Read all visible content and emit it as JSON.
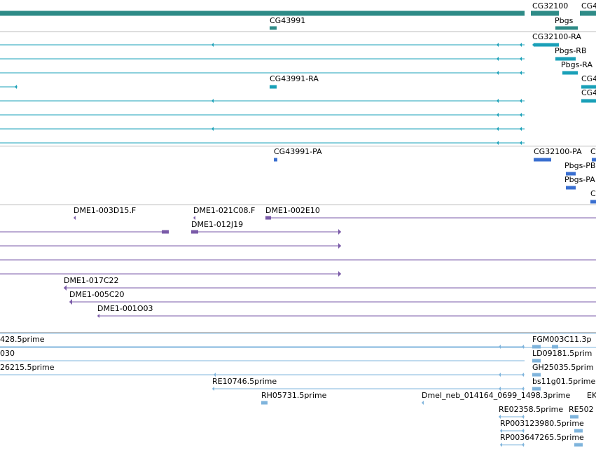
{
  "colors": {
    "gene": "#2e8b87",
    "rna": "#1aa0b8",
    "cds": "#3a6fd0",
    "clone": "#7a5aa8",
    "est": "#7fb4dc",
    "separator": "#b8b8b8",
    "text": "#000000"
  },
  "tracks": {
    "gene": {
      "labels": [
        "CG32100",
        "CG4",
        "CG43991",
        "Pbgs"
      ]
    },
    "rna": {
      "labels": [
        "CG32100-RA",
        "Pbgs-RB",
        "Pbgs-RA",
        "CG43991-RA",
        "CG4",
        "CG4"
      ]
    },
    "cds": {
      "labels": [
        "CG43991-PA",
        "CG32100-PA",
        "C",
        "Pbgs-PB",
        "Pbgs-PA",
        "C"
      ]
    },
    "clone": {
      "labels": [
        "DME1-003D15.F",
        "DME1-021C08.F",
        "DME1-002E10",
        "DME1-012J19",
        "DME1-017C22",
        "DME1-005C20",
        "DME1-001O03"
      ]
    },
    "est": {
      "labels": [
        "428.5prime",
        "030",
        "26215.5prime",
        "RE10746.5prime",
        "RH05731.5prime",
        "Dmel_neb_014164_0699_1498.3prime",
        "FGM003C11.3p",
        "LD09181.5prim",
        "GH25035.5prim",
        "bs11g01.5prime",
        "EK",
        "RE02358.5prime",
        "RE502",
        "RP003123980.5prime",
        "RP003647265.5prime"
      ]
    }
  }
}
